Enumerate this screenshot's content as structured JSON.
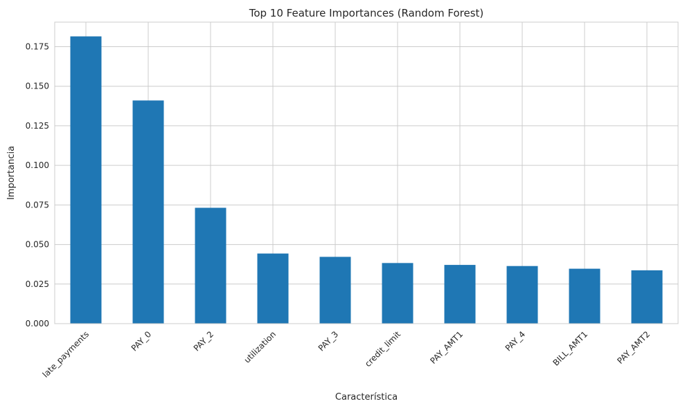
{
  "chart_data": {
    "type": "bar",
    "title": "Top 10 Feature Importances (Random Forest)",
    "xlabel": "Característica",
    "ylabel": "Importancia",
    "categories": [
      "late_payments",
      "PAY_0",
      "PAY_2",
      "utilization",
      "PAY_3",
      "credit_limit",
      "PAY_AMT1",
      "PAY_4",
      "BILL_AMT1",
      "PAY_AMT2"
    ],
    "values": [
      0.1815,
      0.141,
      0.0732,
      0.0443,
      0.0422,
      0.0383,
      0.0371,
      0.0364,
      0.0347,
      0.0337
    ],
    "ylim": [
      0,
      0.1905
    ],
    "yticks": [
      0.0,
      0.025,
      0.05,
      0.075,
      0.1,
      0.125,
      0.15,
      0.175
    ],
    "ytick_labels": [
      "0.000",
      "0.025",
      "0.050",
      "0.075",
      "0.100",
      "0.125",
      "0.150",
      "0.175"
    ],
    "bar_color": "#1f77b4",
    "grid": true,
    "legend": "none"
  }
}
